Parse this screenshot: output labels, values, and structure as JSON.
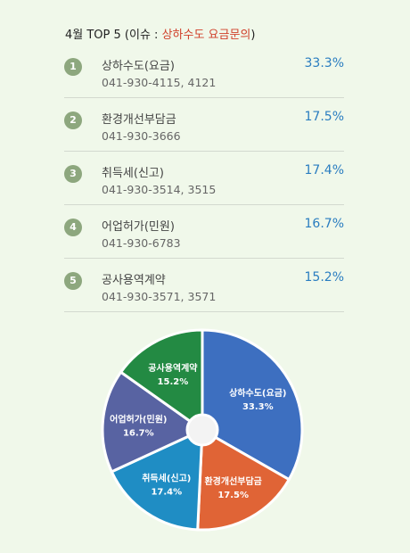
{
  "header": {
    "prefix": "4월 TOP 5 (이슈 : ",
    "issue": "상하수도 요금문의",
    "suffix": ")"
  },
  "items": [
    {
      "rank": "1",
      "name": "상하수도(요금)",
      "phone": "041-930-4115, 4121",
      "percent": "33.3%"
    },
    {
      "rank": "2",
      "name": "환경개선부담금",
      "phone": "041-930-3666",
      "percent": "17.5%"
    },
    {
      "rank": "3",
      "name": "취득세(신고)",
      "phone": "041-930-3514, 3515",
      "percent": "17.4%"
    },
    {
      "rank": "4",
      "name": "어업허가(민원)",
      "phone": "041-930-6783",
      "percent": "16.7%"
    },
    {
      "rank": "5",
      "name": "공사용역계약",
      "phone": "041-930-3571, 3571",
      "percent": "15.2%"
    }
  ],
  "chart_data": {
    "type": "pie",
    "categories": [
      "상하수도(요금)",
      "환경개선부담금",
      "취득세(신고)",
      "어업허가(민원)",
      "공사용역계약"
    ],
    "values": [
      33.3,
      17.5,
      17.4,
      16.7,
      15.2
    ],
    "value_labels": [
      "33.3%",
      "17.5%",
      "17.4%",
      "16.7%",
      "15.2%"
    ],
    "colors": [
      "#3d6fc0",
      "#e06436",
      "#1f8dc4",
      "#5863a2",
      "#238a43"
    ],
    "donut_hole": true
  },
  "colors": {
    "background": "#f0f8ea",
    "rank_badge": "#8da77e",
    "percent": "#2a7dc0",
    "issue": "#d0402a"
  }
}
